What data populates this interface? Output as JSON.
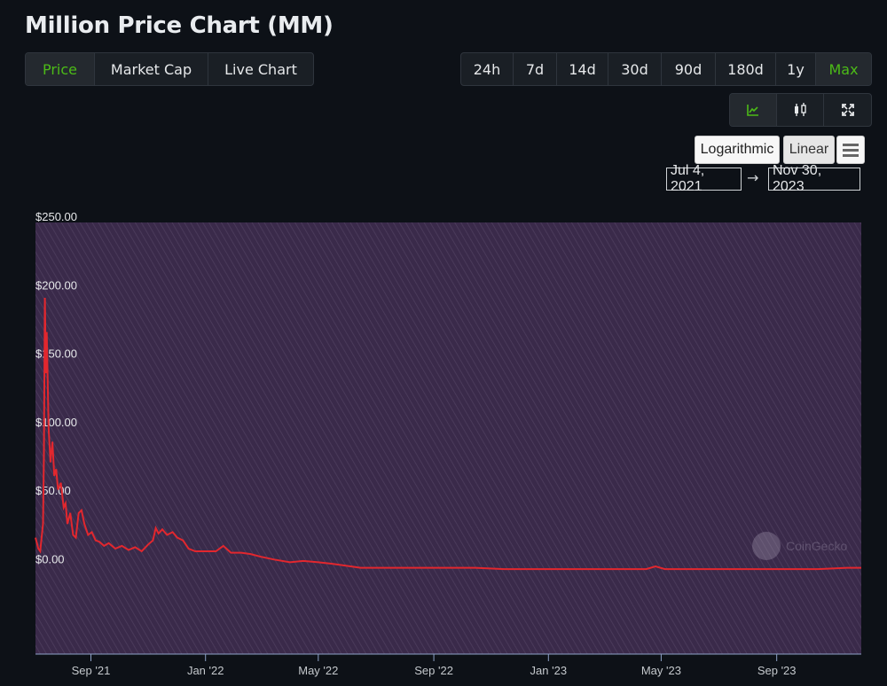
{
  "page": {
    "title": "Million Price Chart (MM)"
  },
  "view_tabs": [
    {
      "label": "Price",
      "active": true
    },
    {
      "label": "Market Cap",
      "active": false
    },
    {
      "label": "Live Chart",
      "active": false
    }
  ],
  "range_tabs": [
    {
      "label": "24h",
      "active": false
    },
    {
      "label": "7d",
      "active": false
    },
    {
      "label": "14d",
      "active": false
    },
    {
      "label": "30d",
      "active": false
    },
    {
      "label": "90d",
      "active": false
    },
    {
      "label": "180d",
      "active": false
    },
    {
      "label": "1y",
      "active": false
    },
    {
      "label": "Max",
      "active": true
    }
  ],
  "chart_type_buttons": [
    {
      "icon": "line-chart-icon",
      "active": true
    },
    {
      "icon": "candlestick-icon",
      "active": false
    },
    {
      "icon": "fullscreen-icon",
      "active": false
    }
  ],
  "scale": {
    "log_label": "Logarithmic",
    "linear_label": "Linear",
    "selected": "Linear"
  },
  "date_range": {
    "from": "Jul 4, 2021",
    "arrow": "→",
    "to": "Nov 30, 2023"
  },
  "watermark": "CoinGecko",
  "colors": {
    "accent": "#4cbb17",
    "line": "#e2272e",
    "plot_background": "#3a2a4a",
    "page_background": "#0d1117"
  },
  "chart_data": {
    "type": "line",
    "title": "",
    "xlabel": "",
    "ylabel": "",
    "ylim": [
      -65,
      250
    ],
    "xlim": [
      "2021-07-04",
      "2023-11-30"
    ],
    "y_ticks": [
      {
        "value": 250,
        "label": "$250.00"
      },
      {
        "value": 200,
        "label": "$200.00"
      },
      {
        "value": 150,
        "label": "$150.00"
      },
      {
        "value": 100,
        "label": "$100.00"
      },
      {
        "value": 50,
        "label": "$50.00"
      },
      {
        "value": 0,
        "label": "$0.00"
      }
    ],
    "x_ticks": [
      {
        "date": "2021-09-01",
        "label": "Sep '21"
      },
      {
        "date": "2022-01-01",
        "label": "Jan '22"
      },
      {
        "date": "2022-05-01",
        "label": "May '22"
      },
      {
        "date": "2022-09-01",
        "label": "Sep '22"
      },
      {
        "date": "2023-01-01",
        "label": "Jan '23"
      },
      {
        "date": "2023-05-01",
        "label": "May '23"
      },
      {
        "date": "2023-09-01",
        "label": "Sep '23"
      }
    ],
    "grid": false,
    "series": [
      {
        "values": [
          [
            "2021-07-04",
            20
          ],
          [
            "2021-07-07",
            12
          ],
          [
            "2021-07-09",
            10
          ],
          [
            "2021-07-12",
            30
          ],
          [
            "2021-07-13",
            80
          ],
          [
            "2021-07-14",
            195
          ],
          [
            "2021-07-15",
            140
          ],
          [
            "2021-07-16",
            170
          ],
          [
            "2021-07-18",
            100
          ],
          [
            "2021-07-20",
            75
          ],
          [
            "2021-07-22",
            90
          ],
          [
            "2021-07-24",
            65
          ],
          [
            "2021-07-26",
            70
          ],
          [
            "2021-07-28",
            55
          ],
          [
            "2021-07-31",
            60
          ],
          [
            "2021-08-03",
            42
          ],
          [
            "2021-08-05",
            45
          ],
          [
            "2021-08-07",
            30
          ],
          [
            "2021-08-10",
            38
          ],
          [
            "2021-08-13",
            22
          ],
          [
            "2021-08-16",
            20
          ],
          [
            "2021-08-19",
            38
          ],
          [
            "2021-08-22",
            40
          ],
          [
            "2021-08-25",
            30
          ],
          [
            "2021-08-29",
            22
          ],
          [
            "2021-09-02",
            24
          ],
          [
            "2021-09-06",
            18
          ],
          [
            "2021-09-10",
            17
          ],
          [
            "2021-09-15",
            14
          ],
          [
            "2021-09-20",
            16
          ],
          [
            "2021-09-27",
            12
          ],
          [
            "2021-10-04",
            14
          ],
          [
            "2021-10-11",
            11
          ],
          [
            "2021-10-18",
            13
          ],
          [
            "2021-10-25",
            10
          ],
          [
            "2021-11-01",
            15
          ],
          [
            "2021-11-06",
            18
          ],
          [
            "2021-11-09",
            27
          ],
          [
            "2021-11-12",
            23
          ],
          [
            "2021-11-16",
            26
          ],
          [
            "2021-11-21",
            22
          ],
          [
            "2021-11-27",
            24
          ],
          [
            "2021-12-02",
            20
          ],
          [
            "2021-12-08",
            18
          ],
          [
            "2021-12-14",
            12
          ],
          [
            "2021-12-21",
            10
          ],
          [
            "2021-12-31",
            10
          ],
          [
            "2022-01-12",
            10
          ],
          [
            "2022-01-20",
            14
          ],
          [
            "2022-01-28",
            9
          ],
          [
            "2022-02-08",
            9
          ],
          [
            "2022-02-18",
            8
          ],
          [
            "2022-03-01",
            6
          ],
          [
            "2022-03-15",
            4
          ],
          [
            "2022-04-01",
            2
          ],
          [
            "2022-04-15",
            3
          ],
          [
            "2022-05-01",
            2
          ],
          [
            "2022-05-15",
            1
          ],
          [
            "2022-06-15",
            -2
          ],
          [
            "2022-07-15",
            -2
          ],
          [
            "2022-08-15",
            -2
          ],
          [
            "2022-09-15",
            -2
          ],
          [
            "2022-10-15",
            -2
          ],
          [
            "2022-11-15",
            -3
          ],
          [
            "2022-12-15",
            -3
          ],
          [
            "2023-01-15",
            -3
          ],
          [
            "2023-02-15",
            -3
          ],
          [
            "2023-03-15",
            -3
          ],
          [
            "2023-04-15",
            -3
          ],
          [
            "2023-04-25",
            -1
          ],
          [
            "2023-05-05",
            -3
          ],
          [
            "2023-06-15",
            -3
          ],
          [
            "2023-07-15",
            -3
          ],
          [
            "2023-08-15",
            -3
          ],
          [
            "2023-09-15",
            -3
          ],
          [
            "2023-10-15",
            -3
          ],
          [
            "2023-11-15",
            -2
          ],
          [
            "2023-11-30",
            -2
          ]
        ]
      }
    ]
  }
}
